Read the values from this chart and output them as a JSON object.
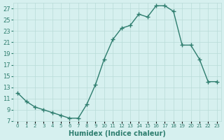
{
  "x": [
    0,
    1,
    2,
    3,
    4,
    5,
    6,
    7,
    8,
    9,
    10,
    11,
    12,
    13,
    14,
    15,
    16,
    17,
    18,
    19,
    20,
    21,
    22,
    23
  ],
  "y": [
    12.0,
    10.5,
    9.5,
    9.0,
    8.5,
    8.0,
    7.5,
    7.5,
    10.0,
    13.5,
    18.0,
    21.5,
    23.5,
    24.0,
    26.0,
    25.5,
    27.5,
    27.5,
    26.5,
    20.5,
    20.5,
    18.0,
    14.0,
    14.0
  ],
  "xlabel": "Humidex (Indice chaleur)",
  "line_color": "#2e7d6e",
  "bg_color": "#d6f0ef",
  "grid_color": "#b8dbd8",
  "text_color": "#2e7d6e",
  "xlim": [
    -0.5,
    23.5
  ],
  "ylim": [
    7,
    28
  ],
  "yticks": [
    7,
    9,
    11,
    13,
    15,
    17,
    19,
    21,
    23,
    25,
    27
  ],
  "xtick_labels": [
    "0",
    "1",
    "2",
    "3",
    "4",
    "5",
    "6",
    "7",
    "8",
    "9",
    "10",
    "11",
    "12",
    "13",
    "14",
    "15",
    "16",
    "17",
    "18",
    "19",
    "20",
    "21",
    "22",
    "23"
  ]
}
